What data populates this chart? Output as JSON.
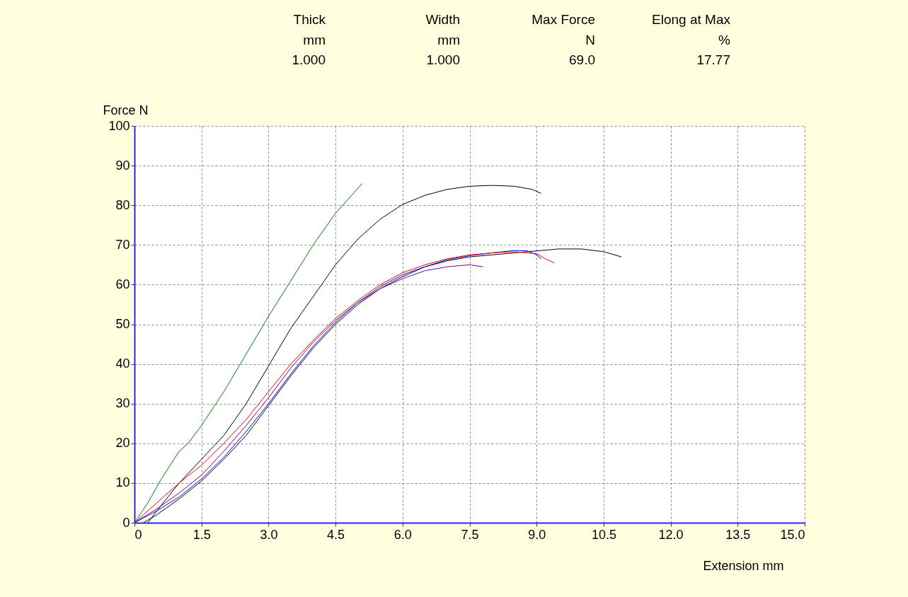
{
  "chart_data": {
    "type": "line",
    "xlabel": "Extension mm",
    "ylabel": "Force N",
    "annotations": [
      "Thick",
      "Width",
      "Max Force",
      "Elong at Max",
      "mm",
      "mm",
      "N",
      "%",
      "1.000",
      "1.000",
      "69.0",
      "17.77"
    ],
    "xlim": [
      0,
      15
    ],
    "ylim": [
      0,
      100
    ],
    "xticks": [
      0,
      1.5,
      {
        "value": 3,
        "label": "3.0"
      },
      4.5,
      {
        "value": 6,
        "label": "6.0"
      },
      7.5,
      {
        "value": 9,
        "label": "9.0"
      },
      10.5,
      {
        "value": 12,
        "label": "12.0"
      },
      13.5,
      {
        "value": 15,
        "label": "15.0"
      }
    ],
    "yticks": [
      0,
      10,
      20,
      30,
      40,
      50,
      60,
      70,
      80,
      90,
      100
    ],
    "grid": true,
    "legend": false,
    "line_style": "solid",
    "marker": "none",
    "series": [
      {
        "color": "#008000",
        "x": [
          0,
          0.3,
          0.6,
          1.0,
          1.2,
          1.5,
          2.0,
          2.5,
          3.0,
          3.5,
          4.0,
          4.5,
          5.1
        ],
        "values": [
          0,
          5,
          11,
          18,
          20,
          24.5,
          33,
          42.5,
          52,
          61,
          70,
          78,
          85.5
        ]
      },
      {
        "color": "#000000",
        "x": [
          0.3,
          0.5,
          1.0,
          1.5,
          2.0,
          2.5,
          3.0,
          3.5,
          4.0,
          4.5,
          5.0,
          5.5,
          6.0,
          6.5,
          7.0,
          7.5,
          8.0,
          8.5,
          8.9,
          9.1
        ],
        "values": [
          0,
          3,
          10,
          16,
          22,
          30,
          39.5,
          49,
          57,
          65,
          71.5,
          76.5,
          80.2,
          82.5,
          84,
          84.8,
          85,
          84.8,
          84,
          83
        ]
      },
      {
        "color": "#000000",
        "x": [
          0.2,
          0.5,
          1.0,
          1.5,
          2.0,
          2.5,
          3.0,
          3.5,
          4.0,
          4.5,
          5.0,
          5.5,
          6.0,
          6.5,
          7.0,
          7.5,
          8.0,
          8.5,
          9.0,
          9.5,
          10.0,
          10.5,
          10.9
        ],
        "values": [
          0,
          2,
          6,
          10.5,
          16,
          22,
          29.5,
          37,
          44,
          50,
          55,
          59,
          62,
          64.5,
          66,
          67,
          67.5,
          68,
          68.5,
          69,
          69,
          68.3,
          67
        ]
      },
      {
        "color": "#800080",
        "x": [
          0,
          0.5,
          1.0,
          1.5,
          2.0,
          2.5,
          3.0,
          3.5,
          4.0,
          4.5,
          5.0,
          5.5,
          6.0,
          6.5,
          7.0,
          7.5,
          7.8
        ],
        "values": [
          0,
          3.5,
          7.5,
          12,
          18,
          24.5,
          31.5,
          39,
          45.5,
          51,
          55.5,
          59,
          61.5,
          63.5,
          64.5,
          65,
          64.5
        ]
      },
      {
        "color": "#0000ff",
        "x": [
          0,
          0.5,
          1.0,
          1.5,
          2.0,
          2.5,
          3.0,
          3.5,
          4.0,
          4.5,
          5.0,
          5.5,
          6.0,
          6.5,
          7.0,
          7.5,
          8.0,
          8.5,
          8.8,
          9.0,
          9.1
        ],
        "values": [
          0,
          3,
          6.5,
          11,
          16.5,
          23,
          30,
          37.5,
          44.5,
          50.5,
          55.5,
          59.5,
          62.5,
          64.5,
          66.3,
          67.3,
          68,
          68.6,
          68.5,
          67.5,
          66.5
        ]
      },
      {
        "color": "#ff0000",
        "x": [
          0,
          0.5,
          1.0,
          1.5,
          2.0,
          2.5,
          3.0,
          3.5,
          4.0,
          4.5,
          5.0,
          5.5,
          6.0,
          6.5,
          7.0,
          7.5,
          8.0,
          8.5,
          9.0,
          9.2,
          9.4
        ],
        "values": [
          0,
          5,
          10,
          14.5,
          20,
          26,
          33,
          40,
          46,
          51.5,
          56,
          60,
          63,
          65,
          66.5,
          67.5,
          68,
          68.3,
          67.8,
          66.5,
          65.5
        ]
      }
    ]
  }
}
